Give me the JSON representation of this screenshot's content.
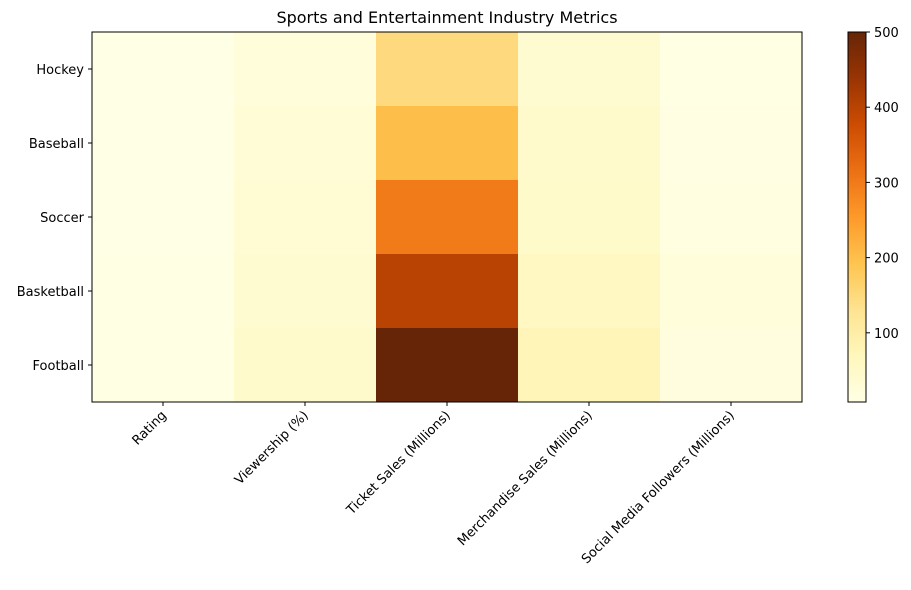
{
  "chart_data": {
    "type": "heatmap",
    "title": "Sports and Entertainment Industry Metrics",
    "rows": [
      "Hockey",
      "Baseball",
      "Soccer",
      "Basketball",
      "Football"
    ],
    "columns": [
      "Rating",
      "Viewership (%)",
      "Ticket Sales (Millions)",
      "Merchandise Sales (Millions)",
      "Social Media Followers (Millions)"
    ],
    "values": [
      [
        8.0,
        25,
        150,
        40,
        10
      ],
      [
        8.2,
        30,
        200,
        45,
        12
      ],
      [
        8.5,
        35,
        300,
        50,
        15
      ],
      [
        8.8,
        40,
        400,
        60,
        25
      ],
      [
        9.0,
        45,
        500,
        75,
        20
      ]
    ],
    "colorbar": {
      "min": 8,
      "max": 500,
      "ticks": [
        100,
        200,
        300,
        400,
        500
      ],
      "colormap": "YlOrBr"
    },
    "colors": {
      "colormap_stops": [
        "#ffffe5",
        "#fff7bc",
        "#fee391",
        "#fec44f",
        "#fe9929",
        "#ec7014",
        "#cc4c02",
        "#993404",
        "#662506"
      ]
    }
  }
}
